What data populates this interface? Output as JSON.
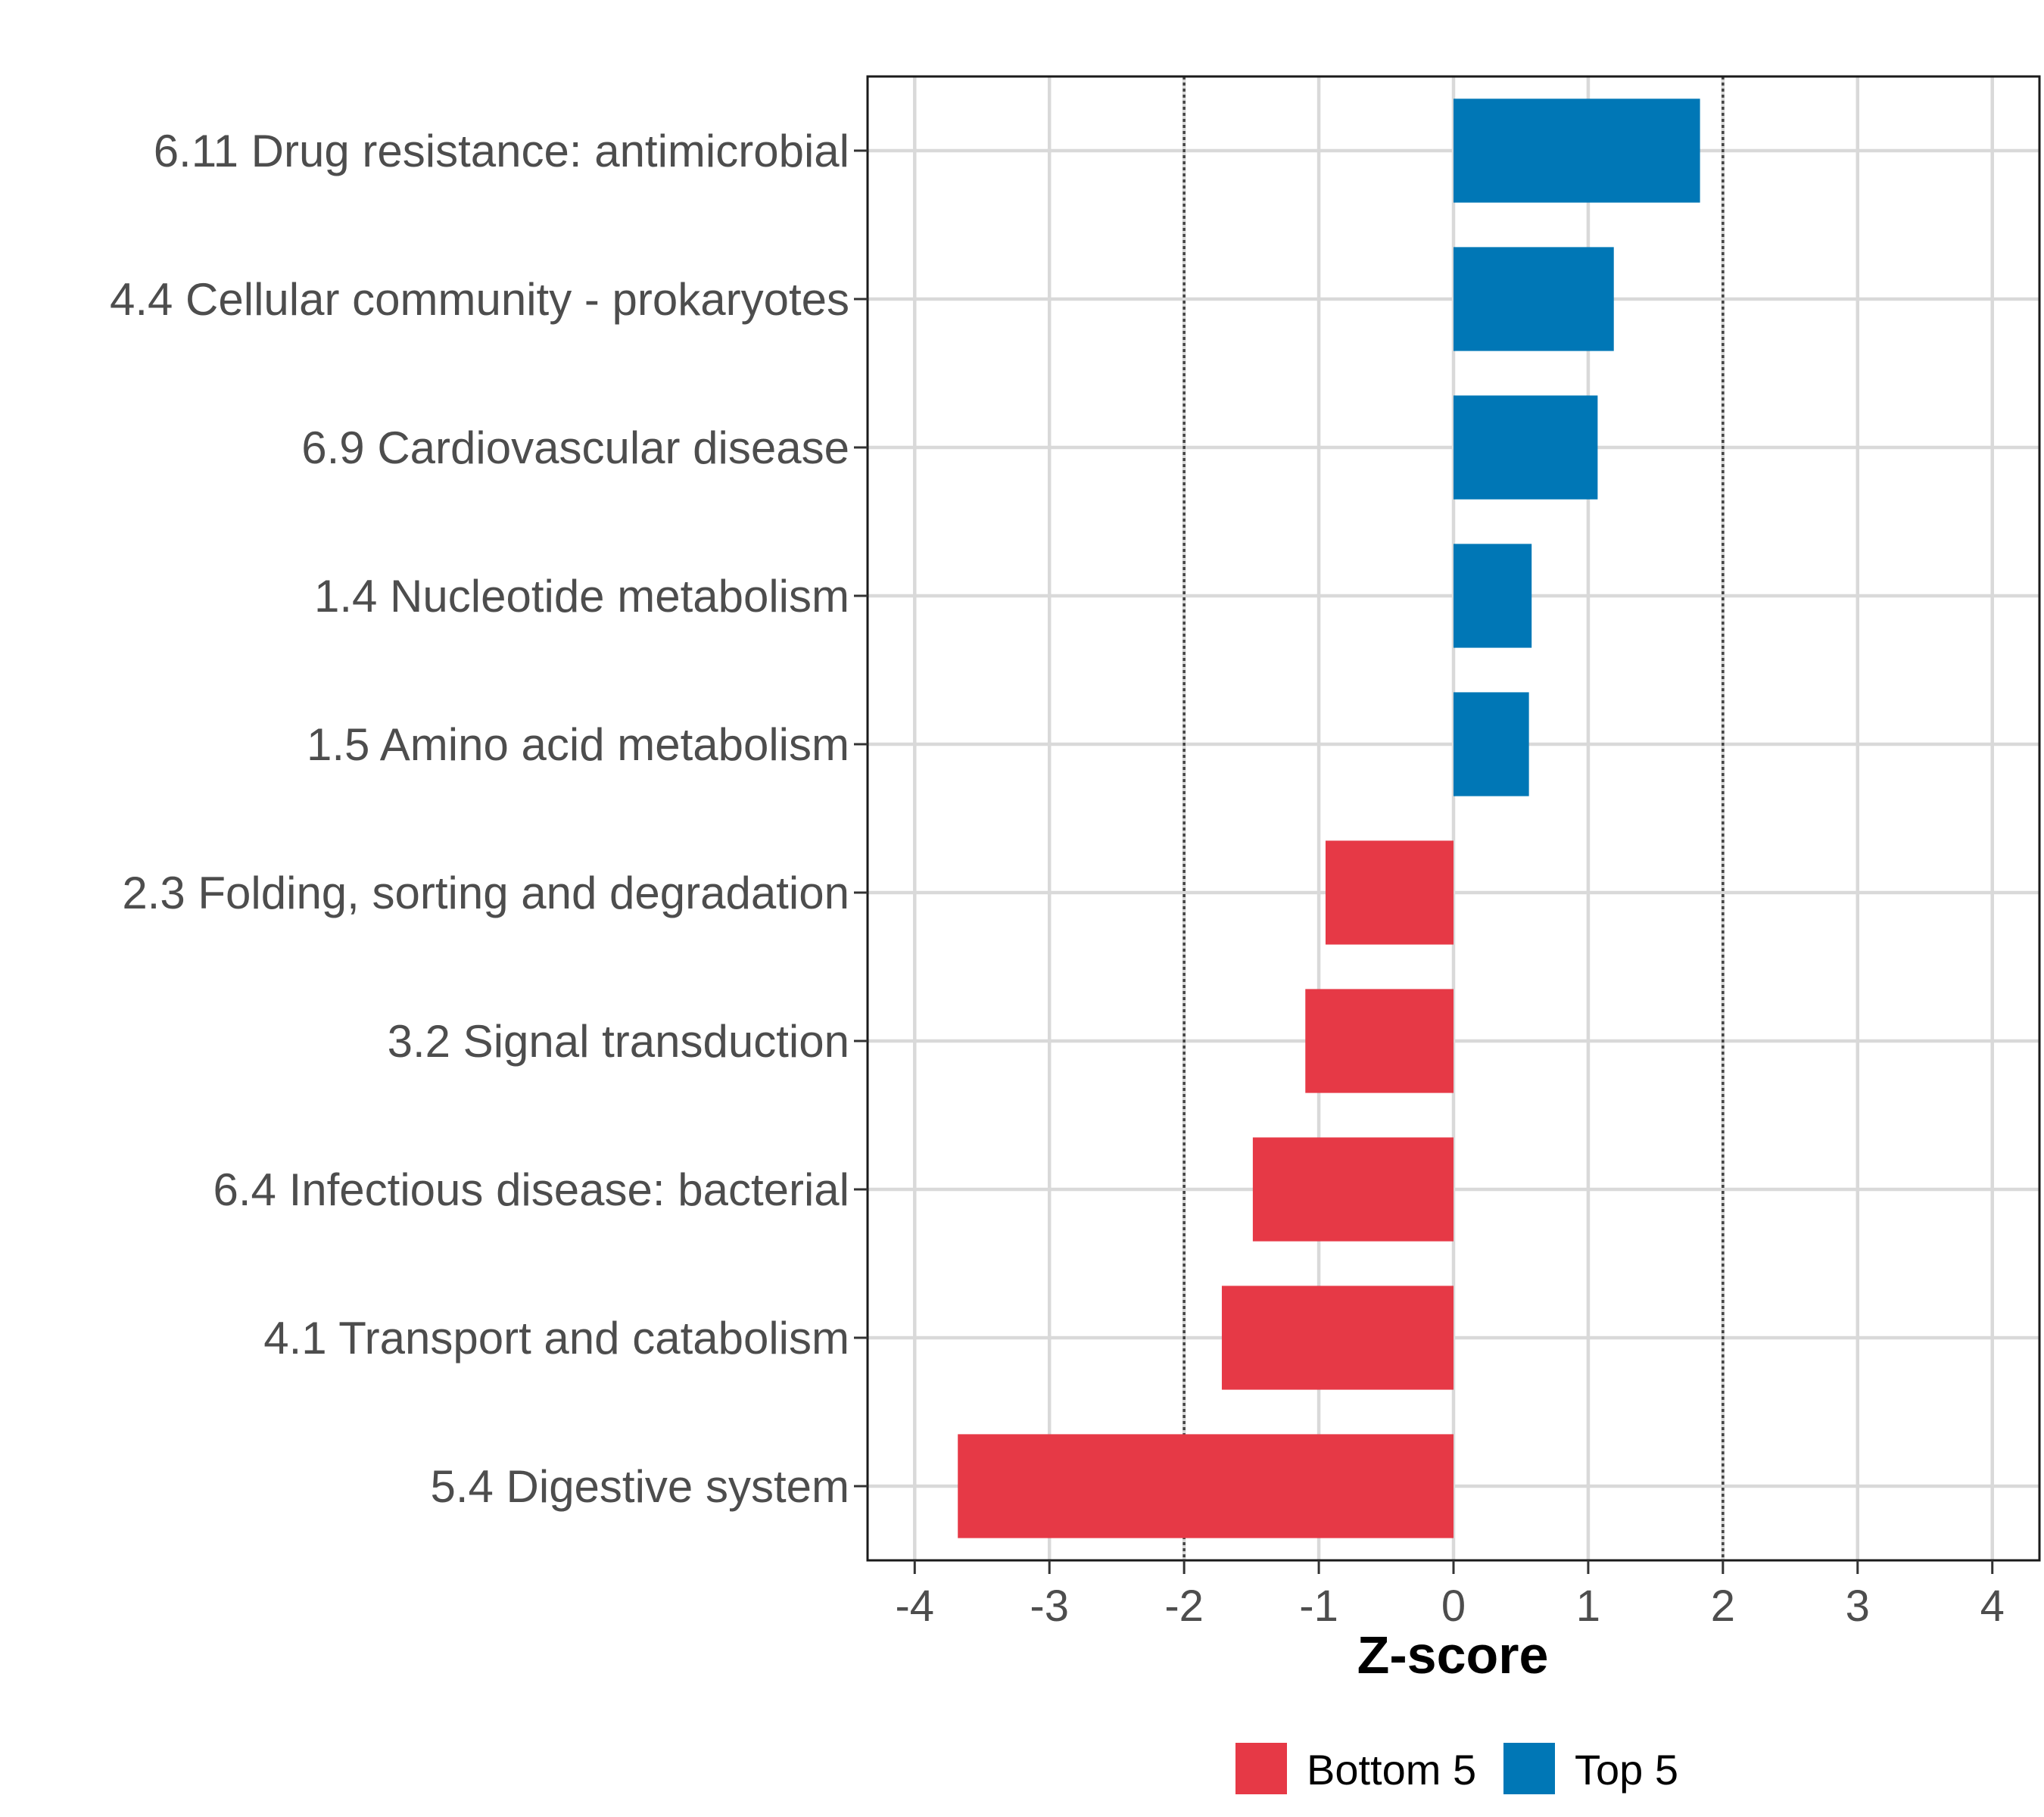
{
  "chart_data": {
    "type": "bar",
    "orientation": "horizontal",
    "title": "",
    "xlabel": "Z-score",
    "ylabel": "",
    "xlim": [
      -4.35,
      4.35
    ],
    "xticks": [
      -4,
      -3,
      -2,
      -1,
      0,
      1,
      2,
      3,
      4
    ],
    "grid": true,
    "reference_lines": [
      -2,
      2
    ],
    "legend_position": "bottom",
    "legend": [
      {
        "name": "Bottom 5",
        "color": "#e63946"
      },
      {
        "name": "Top 5",
        "color": "#0077b6"
      }
    ],
    "categories": [
      "6.11 Drug resistance: antimicrobial",
      "4.4 Cellular community - prokaryotes",
      "6.9 Cardiovascular disease",
      "1.4 Nucleotide metabolism",
      "1.5 Amino acid metabolism",
      "2.3 Folding, sorting and degradation",
      "3.2 Signal transduction",
      "6.4 Infectious disease: bacterial",
      "4.1 Transport and catabolism",
      "5.4 Digestive system"
    ],
    "values": [
      1.83,
      1.19,
      1.07,
      0.58,
      0.56,
      -0.95,
      -1.1,
      -1.49,
      -1.72,
      -3.68
    ],
    "groups": [
      "Top 5",
      "Top 5",
      "Top 5",
      "Top 5",
      "Top 5",
      "Bottom 5",
      "Bottom 5",
      "Bottom 5",
      "Bottom 5",
      "Bottom 5"
    ]
  }
}
